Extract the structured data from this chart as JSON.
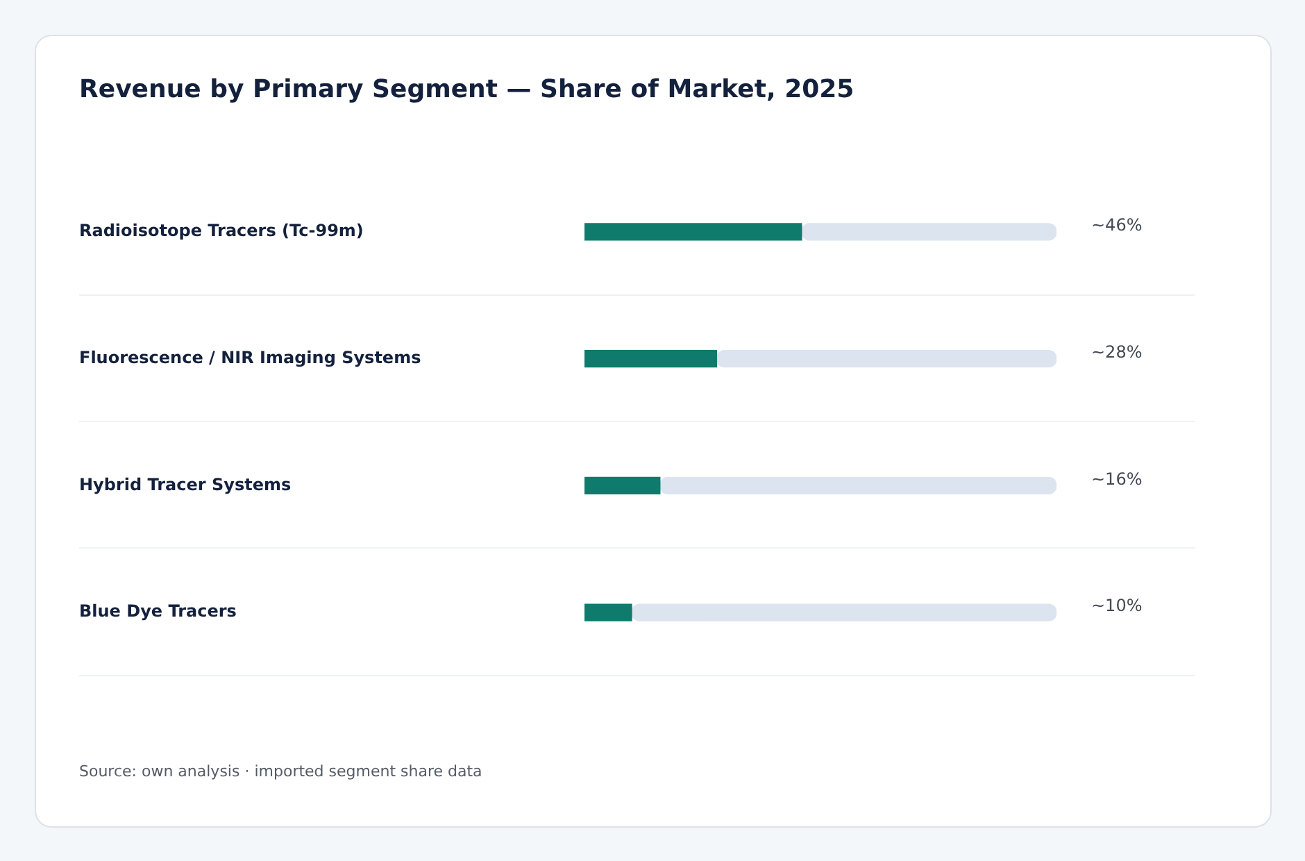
{
  "chart_data": {
    "type": "bar",
    "orientation": "horizontal",
    "title": "Revenue by Primary Segment — Share of Market, 2025",
    "categories": [
      "Radioisotope Tracers (Tc-99m)",
      "Fluorescence / NIR Imaging Systems",
      "Hybrid Tracer Systems",
      "Blue Dye Tracers"
    ],
    "series": [
      {
        "color": "#0f7b6c",
        "values": [
          46,
          28,
          16,
          10
        ],
        "value_labels": [
          "~46%",
          "~28%",
          "~16%",
          "~10%"
        ]
      },
      {
        "color": "#dce4ef",
        "values": [
          54,
          72,
          84,
          90
        ]
      }
    ],
    "stacked": true,
    "xlim": [
      0,
      100
    ],
    "tick_labels": "y",
    "legend": false,
    "annotations": [
      "Source: own analysis · imported segment share data"
    ]
  }
}
